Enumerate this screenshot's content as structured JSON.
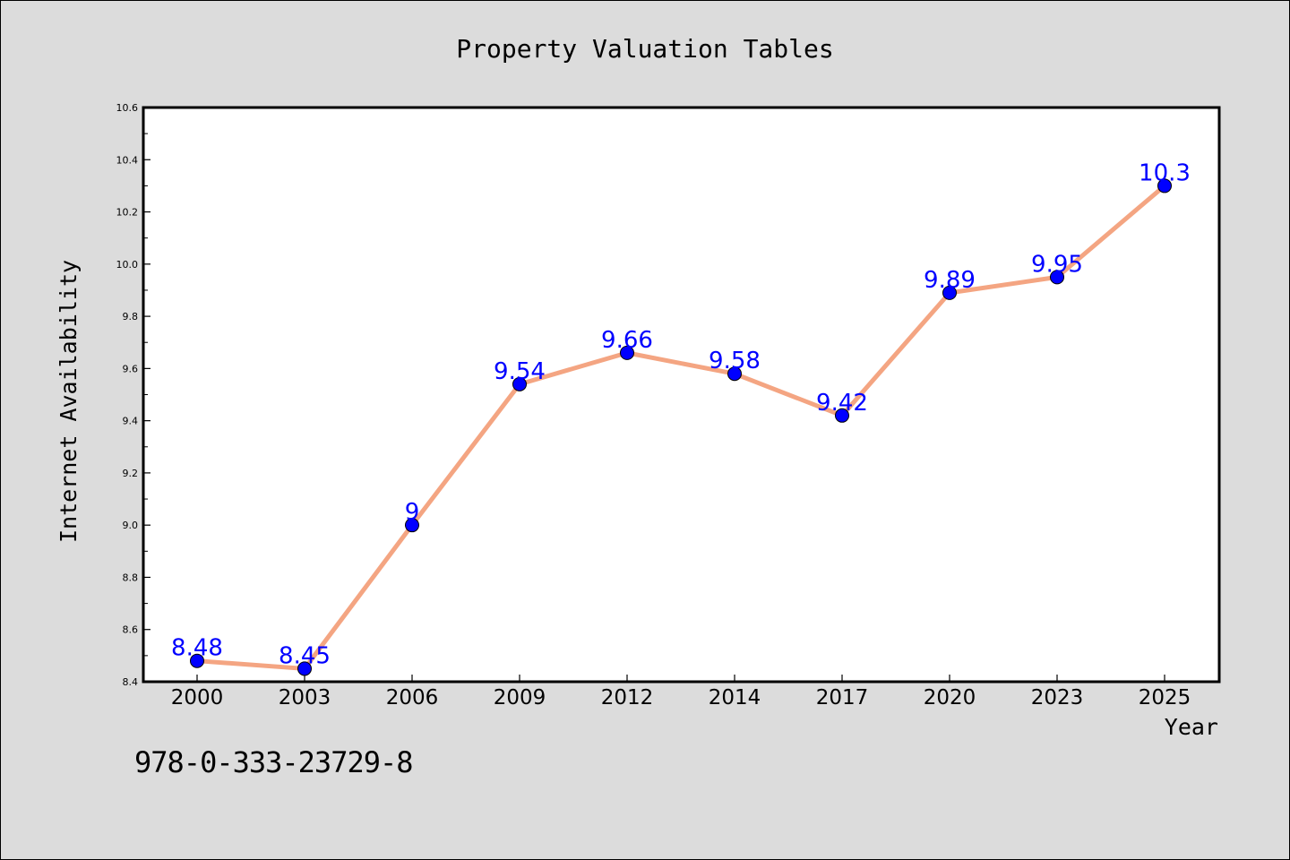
{
  "chart_data": {
    "type": "line",
    "title": "Property Valuation Tables",
    "xlabel": "Year",
    "ylabel": "Internet Availability",
    "categories": [
      "2000",
      "2003",
      "2006",
      "2009",
      "2012",
      "2014",
      "2017",
      "2020",
      "2023",
      "2025"
    ],
    "series": [
      {
        "values": [
          8.48,
          8.45,
          9.0,
          9.54,
          9.66,
          9.58,
          9.42,
          9.89,
          9.95,
          10.3
        ],
        "data_labels": [
          "8.48",
          "8.45",
          "9",
          "9.54",
          "9.66",
          "9.58",
          "9.42",
          "9.89",
          "9.95",
          "10.3"
        ],
        "line_color": "#f4a582",
        "marker_color": "#0000ff"
      }
    ],
    "ylim": [
      8.4,
      10.6
    ],
    "yticks": [
      "8.4",
      "8.6",
      "8.8",
      "9.0",
      "9.2",
      "9.4",
      "9.6",
      "9.8",
      "10.0",
      "10.2",
      "10.4",
      "10.6"
    ],
    "grid": false,
    "label_color": "#0000ff"
  },
  "footer": {
    "isbn": "978-0-333-23729-8"
  }
}
